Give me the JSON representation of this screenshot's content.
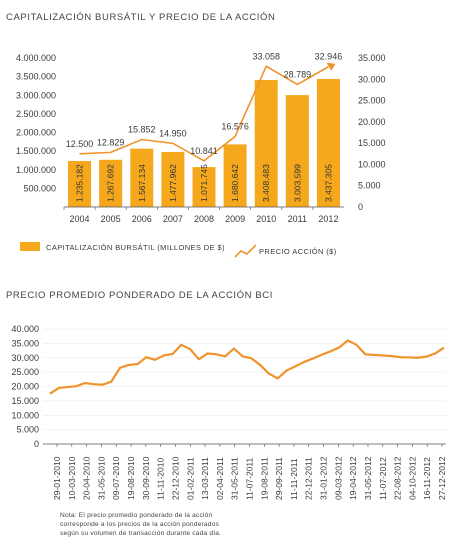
{
  "colors": {
    "bar": "#f5a81c",
    "line": "#f0932b",
    "axis": "#555555",
    "text": "#3a3a3a"
  },
  "chart_data": [
    {
      "type": "bar",
      "title": "CAPITALIZACIÓN BURSÁTIL Y PRECIO DE LA ACCIÓN",
      "categories": [
        "2004",
        "2005",
        "2006",
        "2007",
        "2008",
        "2009",
        "2010",
        "2011",
        "2012"
      ],
      "series": [
        {
          "name": "CAPITALIZACIÓN BURSÁTIL (MILLONES DE $)",
          "type": "bar",
          "axis": "left",
          "values": [
            1235182,
            1267692,
            1567134,
            1477962,
            1071745,
            1680642,
            3408483,
            3003599,
            3437305
          ],
          "labels": [
            "1.235.182",
            "1.267.692",
            "1.567.134",
            "1.477.962",
            "1.071.745",
            "1.680.642",
            "3.408.483",
            "3.003.599",
            "3.437.305"
          ]
        },
        {
          "name": "PRECIO ACCIÓN ($)",
          "type": "line",
          "axis": "right",
          "values": [
            12500,
            12829,
            15852,
            14950,
            10841,
            16576,
            33058,
            28789,
            32946
          ],
          "labels": [
            "12.500",
            "12.829",
            "15.852",
            "14.950",
            "10.841",
            "16.576",
            "33.058",
            "28.789",
            "32.946"
          ]
        }
      ],
      "ylim_left": [
        0,
        4000000
      ],
      "yticks_left": [
        "500.000",
        "1.000.000",
        "1.500.000",
        "2.000.000",
        "2.500.000",
        "3.000.000",
        "3.500.000",
        "4.000.000"
      ],
      "ylim_right": [
        0,
        35000
      ],
      "yticks_right": [
        "0",
        "5.000",
        "10.000",
        "15.000",
        "20.000",
        "25.000",
        "30.000",
        "35.000"
      ],
      "legend_position": "bottom"
    },
    {
      "type": "line",
      "title": "PRECIO PROMEDIO PONDERADO DE LA ACCIÓN BCI",
      "x_tick_labels": [
        "29-01-2010",
        "10-03-2010",
        "20-04-2010",
        "31-05-2010",
        "09-07-2010",
        "19-08-2010",
        "30-09-2010",
        "11-11-2010",
        "22-12-2010",
        "01-02-2011",
        "13-03-2011",
        "02-04-2011",
        "31-05-2011",
        "11-07-2011",
        "19-08-2011",
        "29-09-2011",
        "11-11-2011",
        "22-12-2011",
        "31-01-2012",
        "09-03-2012",
        "19-04-2012",
        "31-05-2012",
        "11-07-2012",
        "22-08-2012",
        "04-10-2012",
        "16-11-2012",
        "27-12-2012"
      ],
      "yticks": [
        "0",
        "5.000",
        "10.000",
        "15.000",
        "20.000",
        "25.000",
        "30.000",
        "35.000",
        "40.000"
      ],
      "ylim": [
        0,
        40000
      ],
      "series": [
        {
          "values": [
            17500,
            19500,
            19800,
            20100,
            21200,
            20800,
            20600,
            21700,
            26500,
            27500,
            27800,
            30200,
            29300,
            30800,
            31300,
            34500,
            33000,
            29500,
            31500,
            31200,
            30500,
            33200,
            30500,
            29800,
            27500,
            24500,
            22800,
            25500,
            27000,
            28500,
            29700,
            31000,
            32200,
            33500,
            36000,
            34500,
            31200,
            31000,
            30800,
            30600,
            30200,
            30100,
            30000,
            30400,
            31500,
            33500
          ]
        }
      ]
    }
  ],
  "note": {
    "lines": [
      "Nota: El precio promedio ponderado de la acción",
      "corresponde a los precios de la acción ponderados",
      "según su volumen de transacción durante cada día."
    ]
  }
}
